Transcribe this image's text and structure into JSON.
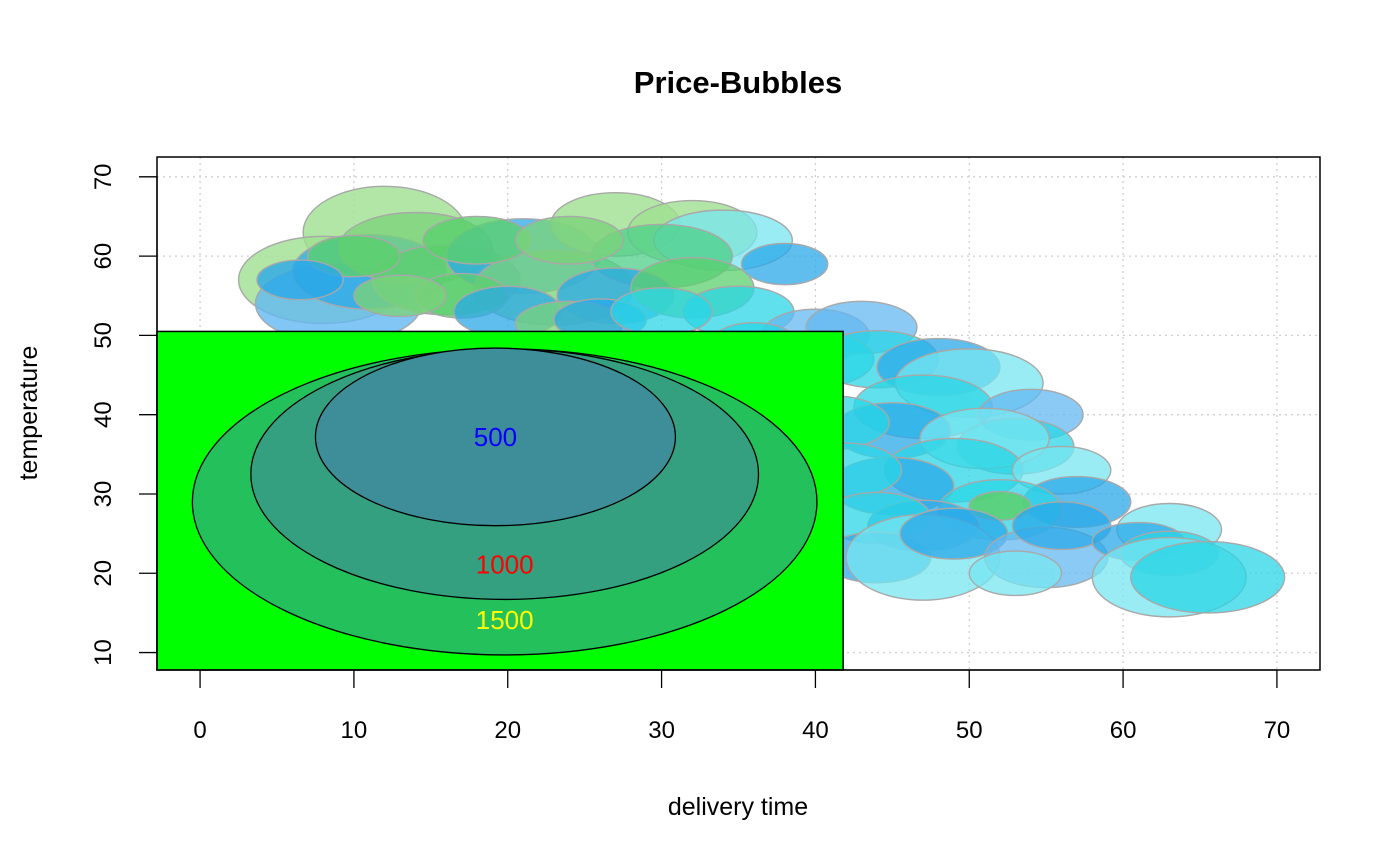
{
  "chart_data": {
    "type": "scatter",
    "title": "Price-Bubbles",
    "xlabel": "delivery time",
    "ylabel": "temperature",
    "xlim": [
      -2.8,
      72.8
    ],
    "ylim": [
      7.8,
      72.5
    ],
    "xticks": [
      0,
      10,
      20,
      30,
      40,
      50,
      60,
      70
    ],
    "yticks": [
      10,
      20,
      30,
      40,
      50,
      60,
      70
    ],
    "grid": true,
    "grid_style": "dotted light gray",
    "bubble_outline": "#a8a8a8",
    "bubbles": [
      {
        "x": 12,
        "y": 63,
        "rx": 5.3,
        "ry": 5.8,
        "color": "#9fe090",
        "alpha": 0.8
      },
      {
        "x": 8,
        "y": 57,
        "rx": 5.5,
        "ry": 5.5,
        "color": "#9fe090",
        "alpha": 0.8
      },
      {
        "x": 9,
        "y": 54,
        "rx": 5.4,
        "ry": 5.0,
        "color": "#63b8f2",
        "alpha": 0.8
      },
      {
        "x": 11,
        "y": 58,
        "rx": 5.0,
        "ry": 4.7,
        "color": "#2aa8e8",
        "alpha": 0.75
      },
      {
        "x": 14,
        "y": 61,
        "rx": 5.0,
        "ry": 4.5,
        "color": "#7ad27a",
        "alpha": 0.75
      },
      {
        "x": 16,
        "y": 57,
        "rx": 4.8,
        "ry": 4.4,
        "color": "#5bcf6d",
        "alpha": 0.75
      },
      {
        "x": 21,
        "y": 60,
        "rx": 5.0,
        "ry": 4.7,
        "color": "#2aa8e8",
        "alpha": 0.75
      },
      {
        "x": 23,
        "y": 56,
        "rx": 5.2,
        "ry": 4.7,
        "color": "#7ad27a",
        "alpha": 0.75
      },
      {
        "x": 27,
        "y": 64,
        "rx": 4.2,
        "ry": 4.0,
        "color": "#9fe090",
        "alpha": 0.8
      },
      {
        "x": 32,
        "y": 63,
        "rx": 4.2,
        "ry": 4.0,
        "color": "#9fe090",
        "alpha": 0.8
      },
      {
        "x": 34,
        "y": 62,
        "rx": 4.5,
        "ry": 3.8,
        "color": "#77e6f0",
        "alpha": 0.75
      },
      {
        "x": 30,
        "y": 60,
        "rx": 4.6,
        "ry": 4.0,
        "color": "#4dcf8a",
        "alpha": 0.75
      },
      {
        "x": 27,
        "y": 55,
        "rx": 3.8,
        "ry": 3.5,
        "color": "#2aa8e8",
        "alpha": 0.75
      },
      {
        "x": 32,
        "y": 56,
        "rx": 4.0,
        "ry": 3.8,
        "color": "#5bcf6d",
        "alpha": 0.75
      },
      {
        "x": 35,
        "y": 53,
        "rx": 3.6,
        "ry": 3.2,
        "color": "#2ad5e6",
        "alpha": 0.75
      },
      {
        "x": 40,
        "y": 50,
        "rx": 3.5,
        "ry": 3.3,
        "color": "#63b8f2",
        "alpha": 0.75
      },
      {
        "x": 43,
        "y": 51,
        "rx": 3.6,
        "ry": 3.3,
        "color": "#63b8f2",
        "alpha": 0.75
      },
      {
        "x": 40,
        "y": 47,
        "rx": 3.8,
        "ry": 3.5,
        "color": "#2ad5e6",
        "alpha": 0.75
      },
      {
        "x": 44,
        "y": 47,
        "rx": 4.0,
        "ry": 3.6,
        "color": "#2ad5e6",
        "alpha": 0.75
      },
      {
        "x": 48,
        "y": 46,
        "rx": 4.0,
        "ry": 3.6,
        "color": "#2aa8e8",
        "alpha": 0.75
      },
      {
        "x": 50,
        "y": 44,
        "rx": 4.8,
        "ry": 4.3,
        "color": "#77e6f0",
        "alpha": 0.75
      },
      {
        "x": 47,
        "y": 41,
        "rx": 4.5,
        "ry": 4.0,
        "color": "#2ad5e6",
        "alpha": 0.75
      },
      {
        "x": 45,
        "y": 38,
        "rx": 3.8,
        "ry": 3.5,
        "color": "#2aa8e8",
        "alpha": 0.75
      },
      {
        "x": 41,
        "y": 39,
        "rx": 3.8,
        "ry": 3.4,
        "color": "#2ad5e6",
        "alpha": 0.75
      },
      {
        "x": 54,
        "y": 40,
        "rx": 3.4,
        "ry": 3.2,
        "color": "#63b8f2",
        "alpha": 0.75
      },
      {
        "x": 53,
        "y": 36,
        "rx": 3.8,
        "ry": 3.5,
        "color": "#2ad5e6",
        "alpha": 0.75
      },
      {
        "x": 51,
        "y": 37,
        "rx": 4.2,
        "ry": 3.8,
        "color": "#77e6f0",
        "alpha": 0.75
      },
      {
        "x": 49,
        "y": 33,
        "rx": 4.5,
        "ry": 4.0,
        "color": "#2ad5e6",
        "alpha": 0.75
      },
      {
        "x": 45,
        "y": 31,
        "rx": 4.0,
        "ry": 3.6,
        "color": "#2aa8e8",
        "alpha": 0.75
      },
      {
        "x": 42,
        "y": 33,
        "rx": 3.6,
        "ry": 3.4,
        "color": "#2ad5e6",
        "alpha": 0.75
      },
      {
        "x": 56,
        "y": 33,
        "rx": 3.2,
        "ry": 3.0,
        "color": "#77e6f0",
        "alpha": 0.75
      },
      {
        "x": 57,
        "y": 29,
        "rx": 3.5,
        "ry": 3.2,
        "color": "#2aa8e8",
        "alpha": 0.75
      },
      {
        "x": 52,
        "y": 28,
        "rx": 4.0,
        "ry": 3.8,
        "color": "#2ad5e6",
        "alpha": 0.75
      },
      {
        "x": 52,
        "y": 28.5,
        "rx": 2.0,
        "ry": 1.8,
        "color": "#5bcf6d",
        "alpha": 0.85
      },
      {
        "x": 47,
        "y": 26,
        "rx": 3.6,
        "ry": 3.2,
        "color": "#2aa8e8",
        "alpha": 0.75
      },
      {
        "x": 44,
        "y": 27,
        "rx": 3.5,
        "ry": 3.2,
        "color": "#2ad5e6",
        "alpha": 0.75
      },
      {
        "x": 44,
        "y": 22,
        "rx": 3.5,
        "ry": 3.2,
        "color": "#2aa8e8",
        "alpha": 0.75
      },
      {
        "x": 47,
        "y": 22,
        "rx": 5.0,
        "ry": 5.4,
        "color": "#77e6f0",
        "alpha": 0.75
      },
      {
        "x": 49,
        "y": 25,
        "rx": 3.5,
        "ry": 3.2,
        "color": "#2aa8e8",
        "alpha": 0.75
      },
      {
        "x": 55,
        "y": 22,
        "rx": 4.0,
        "ry": 3.8,
        "color": "#63b8f2",
        "alpha": 0.75
      },
      {
        "x": 53,
        "y": 20,
        "rx": 3.0,
        "ry": 2.8,
        "color": "#77e6f0",
        "alpha": 0.75
      },
      {
        "x": 56,
        "y": 26,
        "rx": 3.2,
        "ry": 3.0,
        "color": "#2aa8e8",
        "alpha": 0.75
      },
      {
        "x": 63,
        "y": 25.5,
        "rx": 3.4,
        "ry": 3.3,
        "color": "#77e6f0",
        "alpha": 0.75
      },
      {
        "x": 61,
        "y": 24,
        "rx": 3.0,
        "ry": 2.4,
        "color": "#2aa8e8",
        "alpha": 0.75
      },
      {
        "x": 63,
        "y": 22.5,
        "rx": 3.2,
        "ry": 2.8,
        "color": "#2ad5e6",
        "alpha": 0.75
      },
      {
        "x": 63,
        "y": 19.5,
        "rx": 5.0,
        "ry": 5.0,
        "color": "#77e6f0",
        "alpha": 0.75
      },
      {
        "x": 65.5,
        "y": 19.5,
        "rx": 5.0,
        "ry": 4.5,
        "color": "#2ad5e6",
        "alpha": 0.75
      },
      {
        "x": 17,
        "y": 55,
        "rx": 3.0,
        "ry": 2.8,
        "color": "#5bcf6d",
        "alpha": 0.75
      },
      {
        "x": 20,
        "y": 53,
        "rx": 3.5,
        "ry": 3.2,
        "color": "#2aa8e8",
        "alpha": 0.75
      },
      {
        "x": 24,
        "y": 51.5,
        "rx": 3.5,
        "ry": 2.8,
        "color": "#7ad27a",
        "alpha": 0.75
      },
      {
        "x": 26,
        "y": 52,
        "rx": 3.0,
        "ry": 2.6,
        "color": "#2aa8e8",
        "alpha": 0.75
      },
      {
        "x": 30,
        "y": 53,
        "rx": 3.3,
        "ry": 3.0,
        "color": "#2ad5e6",
        "alpha": 0.75
      },
      {
        "x": 10,
        "y": 60,
        "rx": 3.0,
        "ry": 2.6,
        "color": "#5bcf6d",
        "alpha": 0.8
      },
      {
        "x": 13,
        "y": 55,
        "rx": 3.0,
        "ry": 2.6,
        "color": "#7ad27a",
        "alpha": 0.8
      },
      {
        "x": 6.5,
        "y": 57,
        "rx": 2.8,
        "ry": 2.5,
        "color": "#2aa8e8",
        "alpha": 0.8
      },
      {
        "x": 18,
        "y": 62,
        "rx": 3.5,
        "ry": 3.0,
        "color": "#5bcf6d",
        "alpha": 0.8
      },
      {
        "x": 24,
        "y": 62,
        "rx": 3.5,
        "ry": 3.0,
        "color": "#7ad27a",
        "alpha": 0.8
      },
      {
        "x": 38,
        "y": 59,
        "rx": 2.8,
        "ry": 2.6,
        "color": "#2aa8e8",
        "alpha": 0.75
      },
      {
        "x": 36,
        "y": 49,
        "rx": 2.8,
        "ry": 2.6,
        "color": "#2ad5e6",
        "alpha": 0.75
      }
    ],
    "legend": {
      "background": "#00ff00",
      "box": {
        "x0": -2.8,
        "x1": 41.8,
        "y0": 7.8,
        "y1": 50.5
      },
      "items": [
        {
          "label": "1500",
          "label_color": "#ffff00",
          "cx": 19.8,
          "cy": 29,
          "rx": 20.3,
          "ry": 19.3,
          "fill": "#24c05c"
        },
        {
          "label": "1000",
          "label_color": "#ff0000",
          "cx": 19.8,
          "cy": 32.5,
          "rx": 16.5,
          "ry": 15.8,
          "fill": "#34a080"
        },
        {
          "label": "500",
          "label_color": "#0000ff",
          "cx": 19.2,
          "cy": 37.2,
          "rx": 11.7,
          "ry": 11.2,
          "fill": "#3d8e98"
        }
      ]
    }
  }
}
